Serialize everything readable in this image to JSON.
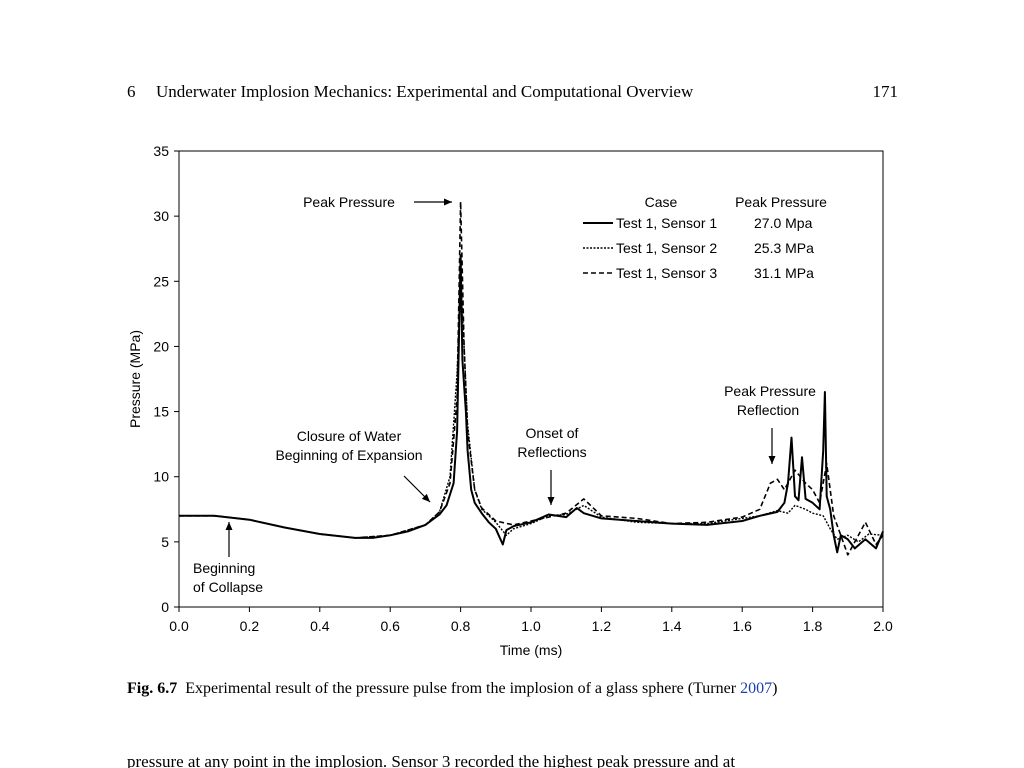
{
  "header": {
    "chapter": "6",
    "title": "Underwater Implosion Mechanics: Experimental and Computational Overview",
    "page": "171"
  },
  "chart_data": {
    "type": "line",
    "xlabel": "Time (ms)",
    "ylabel": "Pressure (MPa)",
    "xlim": [
      0,
      2.0
    ],
    "ylim": [
      0,
      35
    ],
    "xticks": [
      "0.0",
      "0.2",
      "0.4",
      "0.6",
      "0.8",
      "1.0",
      "1.2",
      "1.4",
      "1.6",
      "1.8",
      "2.0"
    ],
    "yticks": [
      "0",
      "5",
      "10",
      "15",
      "20",
      "25",
      "30",
      "35"
    ],
    "grid": false,
    "legend": {
      "position": "top-right",
      "header_case": "Case",
      "header_peak": "Peak Pressure",
      "entries": [
        {
          "name": "Test 1, Sensor 1",
          "peak": "27.0 Mpa",
          "style": "solid"
        },
        {
          "name": "Test 1, Sensor 2",
          "peak": "25.3 MPa",
          "style": "dotted"
        },
        {
          "name": "Test 1, Sensor 3",
          "peak": "31.1 MPa",
          "style": "dashed"
        }
      ]
    },
    "annotations": [
      {
        "lines": [
          "Peak Pressure"
        ],
        "x": 0.8,
        "y": 31.1
      },
      {
        "lines": [
          "Beginning",
          "of Collapse"
        ],
        "x": 0.14,
        "y": 6.9
      },
      {
        "lines": [
          "Closure of Water",
          "Beginning of Expansion"
        ],
        "x": 0.72,
        "y": 8.0
      },
      {
        "lines": [
          "Onset of",
          "Reflections"
        ],
        "x": 1.06,
        "y": 7.4
      },
      {
        "lines": [
          "Peak Pressure",
          "Reflection"
        ],
        "x": 1.68,
        "y": 10.9
      }
    ],
    "series": [
      {
        "name": "Test 1, Sensor 1",
        "style": "solid",
        "x": [
          0,
          0.1,
          0.2,
          0.3,
          0.4,
          0.5,
          0.55,
          0.6,
          0.65,
          0.7,
          0.72,
          0.74,
          0.76,
          0.78,
          0.79,
          0.8,
          0.805,
          0.81,
          0.815,
          0.82,
          0.83,
          0.84,
          0.86,
          0.88,
          0.9,
          0.92,
          0.93,
          0.95,
          1.0,
          1.05,
          1.1,
          1.13,
          1.15,
          1.2,
          1.3,
          1.4,
          1.5,
          1.6,
          1.65,
          1.7,
          1.72,
          1.73,
          1.74,
          1.75,
          1.76,
          1.77,
          1.78,
          1.8,
          1.82,
          1.83,
          1.835,
          1.84,
          1.85,
          1.86,
          1.87,
          1.88,
          1.9,
          1.92,
          1.95,
          1.98,
          2.0
        ],
        "y": [
          7.0,
          7.0,
          6.7,
          6.1,
          5.6,
          5.3,
          5.3,
          5.5,
          5.8,
          6.3,
          6.7,
          7.1,
          7.8,
          9.5,
          13.5,
          27.0,
          19.0,
          17.0,
          15.0,
          12.0,
          9.0,
          8.0,
          7.2,
          6.5,
          6.0,
          4.8,
          5.9,
          6.2,
          6.5,
          7.1,
          6.9,
          7.6,
          7.2,
          6.8,
          6.6,
          6.4,
          6.3,
          6.6,
          7.0,
          7.3,
          8.0,
          9.5,
          13.0,
          8.5,
          8.2,
          11.5,
          8.3,
          8.0,
          7.5,
          12.0,
          16.5,
          8.5,
          7.5,
          5.5,
          4.2,
          5.5,
          5.2,
          4.5,
          5.2,
          4.5,
          5.8
        ]
      },
      {
        "name": "Test 1, Sensor 2",
        "style": "dotted",
        "x": [
          0,
          0.1,
          0.2,
          0.3,
          0.4,
          0.5,
          0.6,
          0.7,
          0.74,
          0.77,
          0.79,
          0.8,
          0.81,
          0.82,
          0.84,
          0.86,
          0.88,
          0.9,
          0.93,
          0.95,
          1.0,
          1.05,
          1.1,
          1.15,
          1.2,
          1.3,
          1.4,
          1.5,
          1.6,
          1.65,
          1.7,
          1.73,
          1.75,
          1.78,
          1.8,
          1.83,
          1.85,
          1.87,
          1.9,
          1.93,
          1.96,
          2.0
        ],
        "y": [
          7.0,
          7.0,
          6.7,
          6.1,
          5.6,
          5.3,
          5.5,
          6.3,
          7.3,
          10.0,
          18.0,
          25.3,
          20.0,
          14.0,
          9.0,
          7.5,
          7.0,
          6.5,
          5.5,
          6.0,
          6.4,
          7.0,
          7.1,
          7.8,
          6.9,
          6.5,
          6.4,
          6.4,
          6.8,
          7.0,
          7.4,
          7.2,
          7.8,
          7.5,
          7.2,
          7.0,
          6.0,
          5.2,
          5.5,
          5.0,
          5.6,
          5.5
        ]
      },
      {
        "name": "Test 1, Sensor 3",
        "style": "dashed",
        "x": [
          0,
          0.1,
          0.2,
          0.3,
          0.4,
          0.5,
          0.6,
          0.7,
          0.74,
          0.77,
          0.79,
          0.8,
          0.81,
          0.82,
          0.84,
          0.86,
          0.88,
          0.9,
          0.95,
          1.0,
          1.05,
          1.1,
          1.15,
          1.2,
          1.3,
          1.4,
          1.5,
          1.6,
          1.65,
          1.68,
          1.7,
          1.72,
          1.75,
          1.78,
          1.8,
          1.82,
          1.84,
          1.85,
          1.86,
          1.88,
          1.9,
          1.92,
          1.95,
          1.98,
          2.0
        ],
        "y": [
          7.0,
          7.0,
          6.7,
          6.1,
          5.6,
          5.3,
          5.5,
          6.3,
          7.3,
          9.5,
          16.0,
          31.1,
          20.0,
          13.5,
          9.0,
          7.6,
          7.1,
          6.6,
          6.3,
          6.6,
          6.9,
          7.2,
          8.3,
          7.0,
          6.8,
          6.4,
          6.5,
          6.9,
          7.5,
          9.5,
          9.8,
          9.0,
          10.5,
          9.5,
          9.0,
          8.0,
          11.0,
          9.0,
          7.0,
          5.5,
          4.0,
          5.0,
          6.5,
          4.8,
          5.5
        ]
      }
    ]
  },
  "caption": {
    "label": "Fig. 6.7",
    "text_before": "Experimental result of the pressure pulse from the implosion of a glass sphere (Turner ",
    "year": "2007",
    "text_after": ")"
  },
  "body_text": "pressure at any point in the implosion. Sensor 3 recorded the highest peak pressure and at"
}
